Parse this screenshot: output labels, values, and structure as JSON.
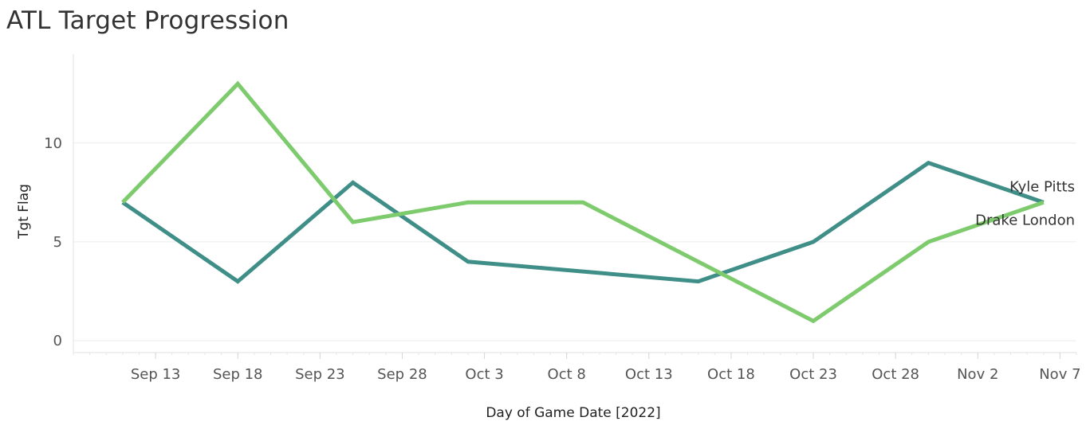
{
  "chart_data": {
    "type": "line",
    "title": "ATL Target Progression",
    "xlabel": "Day of Game Date [2022]",
    "ylabel": "Tgt Flag",
    "x_ticks": [
      "Sep 13",
      "Sep 18",
      "Sep 23",
      "Sep 28",
      "Oct 3",
      "Oct 8",
      "Oct 13",
      "Oct 18",
      "Oct 23",
      "Oct 28",
      "Nov 2",
      "Nov 7"
    ],
    "y_ticks": [
      0,
      5,
      10
    ],
    "ylim": [
      -0.6,
      14.5
    ],
    "xlim": [
      "2022-09-08",
      "2022-11-08"
    ],
    "grid": true,
    "series": [
      {
        "name": "Kyle Pitts",
        "color": "#3f8f88",
        "points": [
          {
            "x": "2022-09-11",
            "y": 7
          },
          {
            "x": "2022-09-18",
            "y": 3
          },
          {
            "x": "2022-09-25",
            "y": 8
          },
          {
            "x": "2022-10-02",
            "y": 4
          },
          {
            "x": "2022-10-16",
            "y": 3
          },
          {
            "x": "2022-10-23",
            "y": 5
          },
          {
            "x": "2022-10-30",
            "y": 9
          },
          {
            "x": "2022-11-06",
            "y": 7
          }
        ]
      },
      {
        "name": "Drake London",
        "color": "#7ecb6e",
        "points": [
          {
            "x": "2022-09-11",
            "y": 7
          },
          {
            "x": "2022-09-18",
            "y": 13
          },
          {
            "x": "2022-09-25",
            "y": 6
          },
          {
            "x": "2022-10-02",
            "y": 7
          },
          {
            "x": "2022-10-09",
            "y": 7
          },
          {
            "x": "2022-10-23",
            "y": 1
          },
          {
            "x": "2022-10-30",
            "y": 5
          },
          {
            "x": "2022-11-06",
            "y": 7
          }
        ]
      }
    ]
  }
}
